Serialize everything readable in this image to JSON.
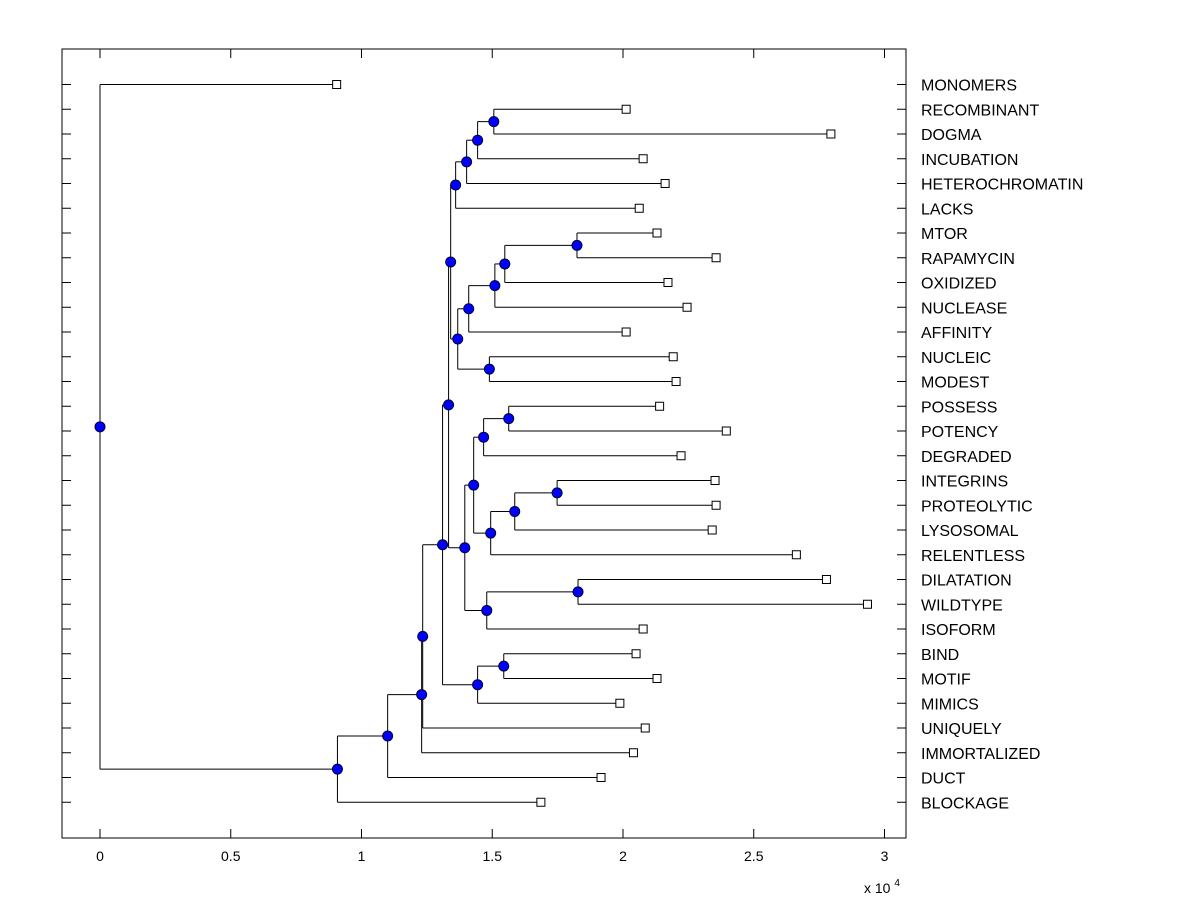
{
  "chart_data": {
    "type": "dendrogram",
    "title": "",
    "xlabel": "",
    "ylabel": "",
    "x_axis": {
      "range": [
        -0.145,
        3.1
      ],
      "ticks": [
        0,
        0.5,
        1,
        1.5,
        2,
        2.5,
        3
      ],
      "tick_labels": [
        "0",
        "0.5",
        "1",
        "1.5",
        "2",
        "2.5",
        "3"
      ],
      "exponent_base": "x 10",
      "exponent_power": "4"
    },
    "leaves": [
      {
        "name": "MONOMERS",
        "x": 0.905
      },
      {
        "name": "RECOMBINANT",
        "x": 2.012
      },
      {
        "name": "DOGMA",
        "x": 2.795
      },
      {
        "name": "INCUBATION",
        "x": 2.077
      },
      {
        "name": "HETEROCHROMATIN",
        "x": 2.161
      },
      {
        "name": "LACKS",
        "x": 2.062
      },
      {
        "name": "MTOR",
        "x": 2.13
      },
      {
        "name": "RAPAMYCIN",
        "x": 2.356
      },
      {
        "name": "OXIDIZED",
        "x": 2.172
      },
      {
        "name": "NUCLEASE",
        "x": 2.245
      },
      {
        "name": "AFFINITY",
        "x": 2.012
      },
      {
        "name": "NUCLEIC",
        "x": 2.192
      },
      {
        "name": "MODEST",
        "x": 2.203
      },
      {
        "name": "POSSESS",
        "x": 2.14
      },
      {
        "name": "POTENCY",
        "x": 2.395
      },
      {
        "name": "DEGRADED",
        "x": 2.222
      },
      {
        "name": "INTEGRINS",
        "x": 2.352
      },
      {
        "name": "PROTEOLYTIC",
        "x": 2.356
      },
      {
        "name": "LYSOSOMAL",
        "x": 2.341
      },
      {
        "name": "RELENTLESS",
        "x": 2.663
      },
      {
        "name": "DILATATION",
        "x": 2.778
      },
      {
        "name": "WILDTYPE",
        "x": 2.935
      },
      {
        "name": "ISOFORM",
        "x": 2.077
      },
      {
        "name": "BIND",
        "x": 2.05
      },
      {
        "name": "MOTIF",
        "x": 2.13
      },
      {
        "name": "MIMICS",
        "x": 1.988
      },
      {
        "name": "UNIQUELY",
        "x": 2.085
      },
      {
        "name": "IMMORTALIZED",
        "x": 2.04
      },
      {
        "name": "DUCT",
        "x": 1.916
      },
      {
        "name": "BLOCKAGE",
        "x": 1.686
      }
    ],
    "internal_nodes": [
      {
        "id": "n01",
        "x": 1.506,
        "children": [
          "RECOMBINANT",
          "DOGMA"
        ]
      },
      {
        "id": "n02",
        "x": 1.444,
        "children": [
          "n01",
          "INCUBATION"
        ]
      },
      {
        "id": "n03",
        "x": 1.402,
        "children": [
          "n02",
          "HETEROCHROMATIN"
        ]
      },
      {
        "id": "n04",
        "x": 1.36,
        "children": [
          "n03",
          "LACKS"
        ]
      },
      {
        "id": "n05",
        "x": 1.824,
        "children": [
          "MTOR",
          "RAPAMYCIN"
        ]
      },
      {
        "id": "n06",
        "x": 1.548,
        "children": [
          "n05",
          "OXIDIZED"
        ]
      },
      {
        "id": "n07",
        "x": 1.51,
        "children": [
          "n06",
          "NUCLEASE"
        ]
      },
      {
        "id": "n08",
        "x": 1.41,
        "children": [
          "n07",
          "AFFINITY"
        ]
      },
      {
        "id": "n09",
        "x": 1.489,
        "children": [
          "NUCLEIC",
          "MODEST"
        ]
      },
      {
        "id": "n10",
        "x": 1.368,
        "children": [
          "n08",
          "n09"
        ]
      },
      {
        "id": "n11",
        "x": 1.341,
        "children": [
          "n04",
          "n10"
        ]
      },
      {
        "id": "n12",
        "x": 1.563,
        "children": [
          "POSSESS",
          "POTENCY"
        ]
      },
      {
        "id": "n13",
        "x": 1.467,
        "children": [
          "n12",
          "DEGRADED"
        ]
      },
      {
        "id": "n14",
        "x": 1.748,
        "children": [
          "INTEGRINS",
          "PROTEOLYTIC"
        ]
      },
      {
        "id": "n15",
        "x": 1.586,
        "children": [
          "n14",
          "LYSOSOMAL"
        ]
      },
      {
        "id": "n16",
        "x": 1.494,
        "children": [
          "n15",
          "RELENTLESS"
        ]
      },
      {
        "id": "n17",
        "x": 1.429,
        "children": [
          "n13",
          "n16"
        ]
      },
      {
        "id": "n18",
        "x": 1.828,
        "children": [
          "DILATATION",
          "WILDTYPE"
        ]
      },
      {
        "id": "n19",
        "x": 1.479,
        "children": [
          "n18",
          "ISOFORM"
        ]
      },
      {
        "id": "n20",
        "x": 1.395,
        "children": [
          "n17",
          "n19"
        ]
      },
      {
        "id": "n21",
        "x": 1.333,
        "children": [
          "n11",
          "n20"
        ]
      },
      {
        "id": "n22",
        "x": 1.544,
        "children": [
          "BIND",
          "MOTIF"
        ]
      },
      {
        "id": "n23",
        "x": 1.444,
        "children": [
          "n22",
          "MIMICS"
        ]
      },
      {
        "id": "n24",
        "x": 1.31,
        "children": [
          "n21",
          "n23"
        ]
      },
      {
        "id": "n25",
        "x": 1.234,
        "children": [
          "n24",
          "UNIQUELY"
        ]
      },
      {
        "id": "n26",
        "x": 1.23,
        "children": [
          "n25",
          "IMMORTALIZED"
        ]
      },
      {
        "id": "n27",
        "x": 1.1,
        "children": [
          "n26",
          "DUCT"
        ]
      },
      {
        "id": "n28",
        "x": 0.908,
        "children": [
          "n27",
          "BLOCKAGE"
        ]
      },
      {
        "id": "n29",
        "x": 0.0,
        "children": [
          "MONOMERS",
          "n28"
        ]
      }
    ],
    "colors": {
      "node_fill": "#0000ff",
      "node_stroke": "#000033",
      "line": "#000000",
      "leaf_marker_fill": "#ffffff"
    }
  }
}
